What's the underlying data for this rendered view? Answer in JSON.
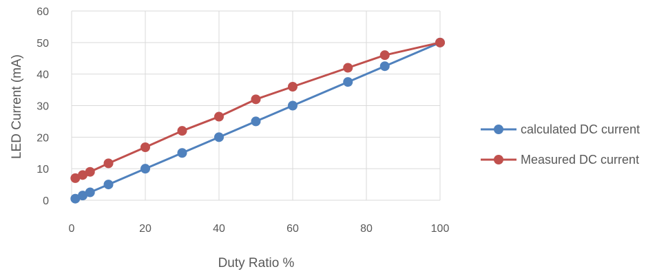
{
  "chart_data": {
    "type": "line",
    "title": "",
    "xlabel": "Duty Ratio %",
    "ylabel": "LED Current (mA)",
    "xlim": [
      0,
      100
    ],
    "ylim": [
      0,
      60
    ],
    "x_ticks": [
      0,
      20,
      40,
      60,
      80,
      100
    ],
    "y_ticks": [
      0,
      10,
      20,
      30,
      40,
      50,
      60
    ],
    "grid": true,
    "legend_position": "right",
    "series": [
      {
        "name": "calculated DC current",
        "color": "#4F81BD",
        "points": [
          {
            "x": 1,
            "y": 0.5
          },
          {
            "x": 3,
            "y": 1.5
          },
          {
            "x": 5,
            "y": 2.5
          },
          {
            "x": 10,
            "y": 5
          },
          {
            "x": 20,
            "y": 10
          },
          {
            "x": 30,
            "y": 15
          },
          {
            "x": 40,
            "y": 20
          },
          {
            "x": 50,
            "y": 25
          },
          {
            "x": 60,
            "y": 30
          },
          {
            "x": 75,
            "y": 37.5
          },
          {
            "x": 85,
            "y": 42.5
          },
          {
            "x": 100,
            "y": 50
          }
        ]
      },
      {
        "name": "Measured DC current",
        "color": "#C0504D",
        "points": [
          {
            "x": 1,
            "y": 7
          },
          {
            "x": 3,
            "y": 8
          },
          {
            "x": 5,
            "y": 9
          },
          {
            "x": 10,
            "y": 11.7
          },
          {
            "x": 20,
            "y": 16.8
          },
          {
            "x": 30,
            "y": 22
          },
          {
            "x": 40,
            "y": 26.5
          },
          {
            "x": 50,
            "y": 32
          },
          {
            "x": 60,
            "y": 36
          },
          {
            "x": 75,
            "y": 42
          },
          {
            "x": 85,
            "y": 46
          },
          {
            "x": 100,
            "y": 50
          }
        ]
      }
    ]
  }
}
